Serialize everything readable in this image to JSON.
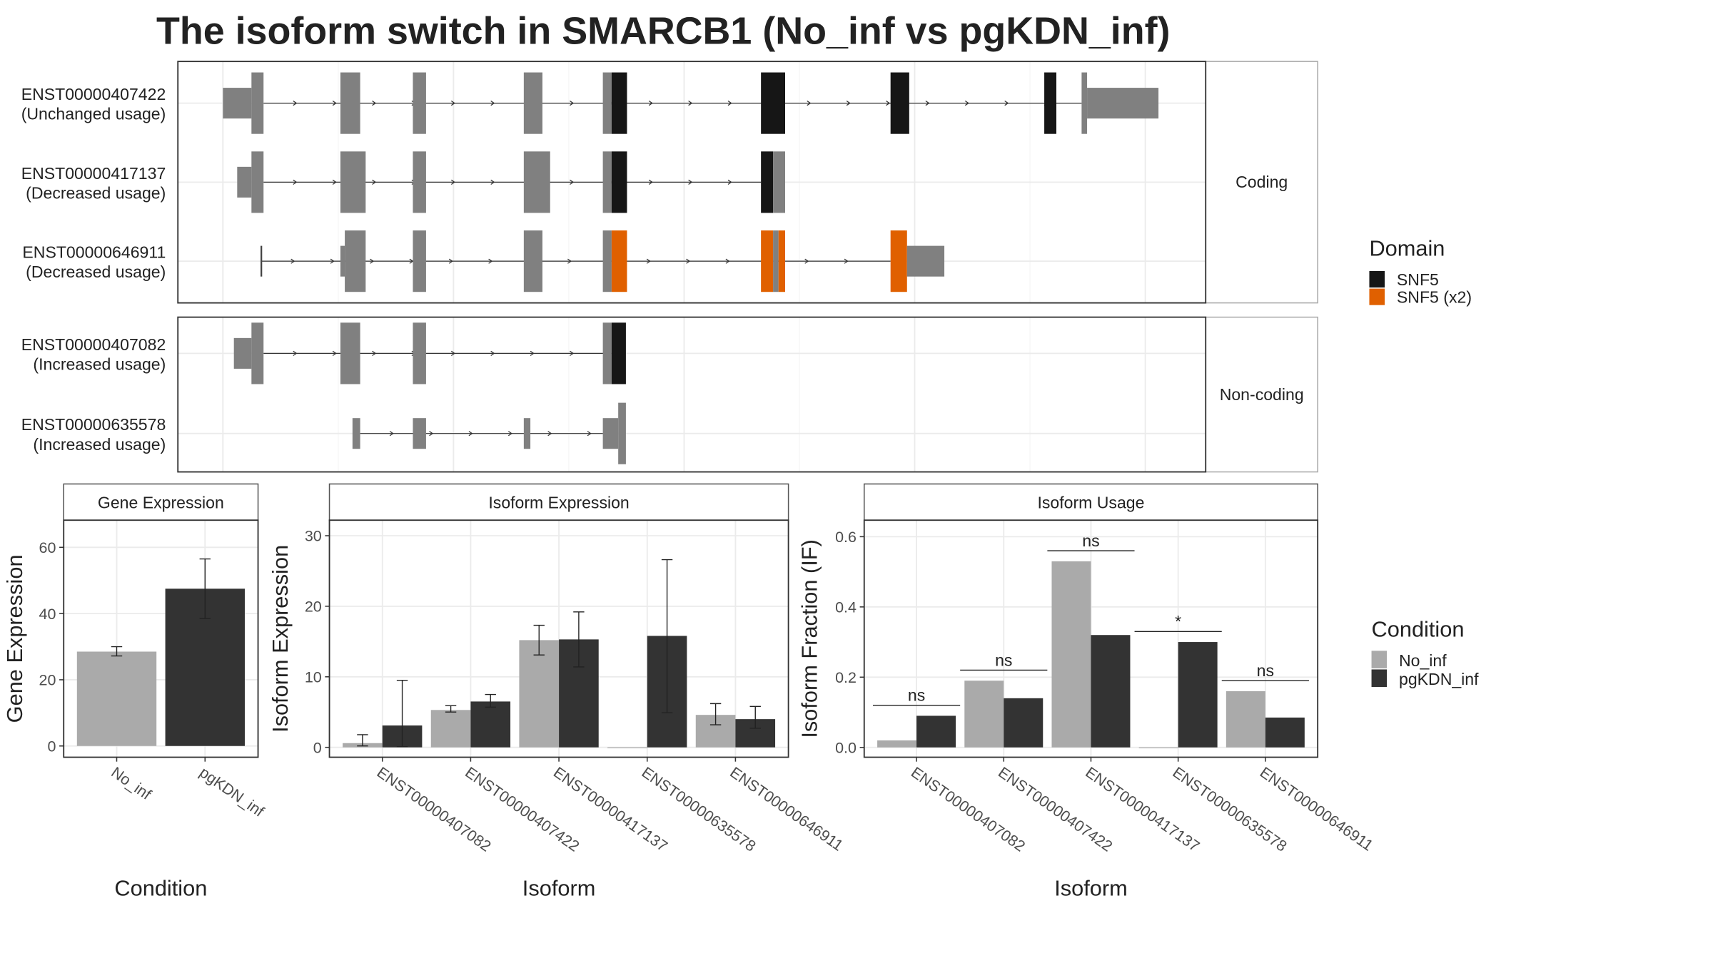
{
  "title": "The isoform switch in SMARCB1 (No_inf vs pgKDN_inf)",
  "transcript_plot": {
    "facets": [
      "Coding",
      "Non-coding"
    ],
    "transcripts": [
      {
        "id": "ENST00000407422",
        "usage": "(Unchanged usage)"
      },
      {
        "id": "ENST00000417137",
        "usage": "(Decreased usage)"
      },
      {
        "id": "ENST00000646911",
        "usage": "(Decreased usage)"
      },
      {
        "id": "ENST00000407082",
        "usage": "(Increased usage)"
      },
      {
        "id": "ENST00000635578",
        "usage": "(Increased usage)"
      }
    ],
    "legend": {
      "title": "Domain",
      "entries": [
        {
          "name": "SNF5",
          "color": "#161616"
        },
        {
          "name": "SNF5 (x2)",
          "color": "#e06000"
        }
      ]
    }
  },
  "condition_legend": {
    "title": "Condition"
  },
  "chart_data": [
    {
      "type": "bar",
      "title": "Gene Expression",
      "x_label": "Condition",
      "y_label": "Gene Expression",
      "categories": [
        "No_inf",
        "pgKDN_inf"
      ],
      "values": [
        28.5,
        47.5
      ],
      "colors": [
        "#aaaaaa",
        "#333333"
      ],
      "errors": [
        [
          27.2,
          30.0
        ],
        [
          38.5,
          56.5
        ]
      ],
      "ylim": [
        -3.4,
        68.2
      ],
      "yticks": [
        0,
        20,
        40,
        60
      ],
      "grid": true
    },
    {
      "type": "grouped_bar",
      "title": "Isoform Expression",
      "x_label": "Isoform",
      "y_label": "Isoform Expression",
      "categories": [
        "ENST00000407082",
        "ENST00000407422",
        "ENST00000417137",
        "ENST00000635578",
        "ENST00000646911"
      ],
      "series": [
        {
          "name": "No_inf",
          "color": "#aaaaaa",
          "values": [
            0.6,
            5.3,
            15.2,
            0,
            4.6
          ],
          "errors": [
            [
              0.2,
              1.8
            ],
            [
              5.0,
              5.9
            ],
            [
              13.1,
              17.3
            ],
            null,
            [
              3.2,
              6.2
            ]
          ]
        },
        {
          "name": "pgKDN_inf",
          "color": "#333333",
          "values": [
            3.1,
            6.5,
            15.3,
            15.8,
            4.0
          ],
          "errors": [
            [
              0.1,
              9.5
            ],
            [
              5.7,
              7.5
            ],
            [
              11.4,
              19.2
            ],
            [
              4.9,
              26.6
            ],
            [
              2.7,
              5.8
            ]
          ]
        }
      ],
      "ylim": [
        -1.4,
        32.2
      ],
      "yticks": [
        0,
        10,
        20,
        30
      ],
      "grid": true
    },
    {
      "type": "grouped_bar",
      "title": "Isoform Usage",
      "x_label": "Isoform",
      "y_label": "Isoform Fraction (IF)",
      "categories": [
        "ENST00000407082",
        "ENST00000407422",
        "ENST00000417137",
        "ENST00000635578",
        "ENST00000646911"
      ],
      "series": [
        {
          "name": "No_inf",
          "color": "#aaaaaa",
          "values": [
            0.02,
            0.19,
            0.53,
            0,
            0.16
          ]
        },
        {
          "name": "pgKDN_inf",
          "color": "#333333",
          "values": [
            0.09,
            0.14,
            0.32,
            0.3,
            0.085
          ]
        }
      ],
      "significance": [
        "ns",
        "ns",
        "ns",
        "*",
        "ns"
      ],
      "ylim": [
        -0.028,
        0.647
      ],
      "yticks": [
        {
          "value": 0,
          "label": "0.0"
        },
        0.2,
        0.4,
        0.6
      ],
      "grid": true
    }
  ]
}
